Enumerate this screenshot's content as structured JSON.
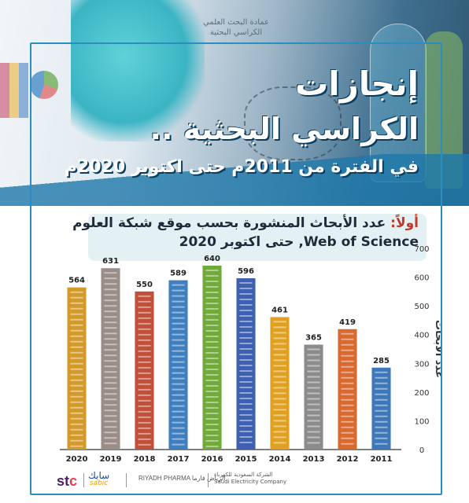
{
  "header": {
    "deanship_line1": "عمادة البحث العلمي",
    "deanship_line2": "الكراسي البحثية",
    "title_line1": "إنجازات",
    "title_line2": "الكراسي البحثية ..",
    "title_line3": "في الفترة من 2011م حتى اكتوبر 2020م"
  },
  "section": {
    "lead": "أولاً:",
    "heading_line1": " عدد الأبحاث المنشورة بحسب موقع شبكة العلوم",
    "heading_line2": "Web of Science,  حتى اكتوبر 2020"
  },
  "colors": {
    "frame": "#2a8fbf",
    "bars": [
      "#d39a2a",
      "#9a8c86",
      "#c0503a",
      "#3f7fbf",
      "#6faa3a",
      "#3f5fb0",
      "#e0a020",
      "#8c8c8c",
      "#d86a30",
      "#3f78b8"
    ]
  },
  "chart_data": {
    "type": "bar",
    "categories": [
      "2020",
      "2019",
      "2018",
      "2017",
      "2016",
      "2015",
      "2014",
      "2013",
      "2012",
      "2011"
    ],
    "values": [
      564,
      631,
      550,
      589,
      640,
      596,
      461,
      365,
      419,
      285
    ],
    "ylabel": "عدد الأبحاث",
    "ylim": [
      0,
      700
    ],
    "yticks": [
      0,
      100,
      200,
      300,
      400,
      500,
      600,
      700
    ],
    "y_axis_position": "right",
    "grid": false
  },
  "sponsors": {
    "stc_prefix": "st",
    "stc_suffix": "c",
    "sabic_ar": "سابك",
    "sabic_en": "sabic",
    "riyadh": "RIYADH PHARMA",
    "riyadh_ar": "الرياض فارما",
    "sec_ar": "الشركة السعودية للكهرباء",
    "sec_en": "Saudi Electricity Company"
  }
}
